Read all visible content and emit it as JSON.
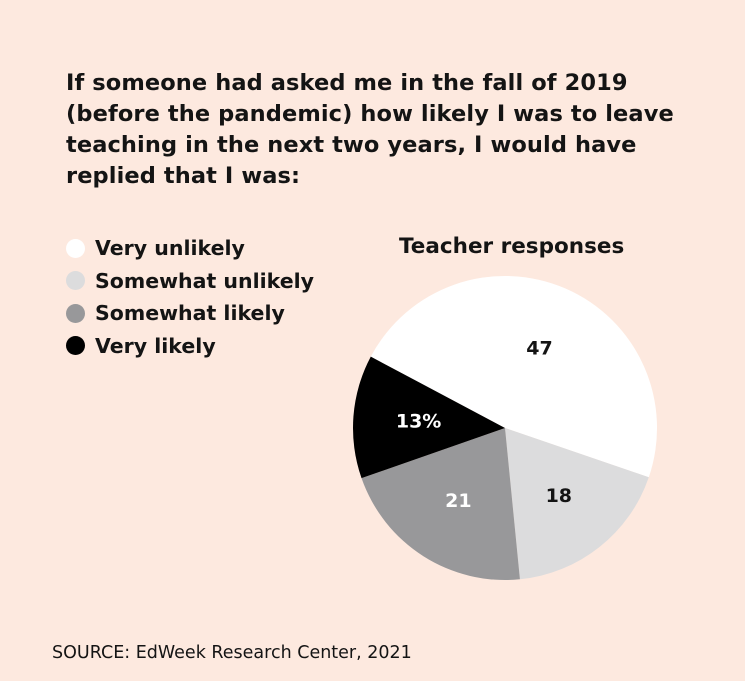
{
  "title": "If someone had asked me in the fall of 2019 (before the pandemic) how likely I was to leave teaching in the next two years, I would have replied that I was:",
  "source": "SOURCE: EdWeek Research Center, 2021",
  "colors": {
    "background": "#fde9df",
    "very_unlikely": "#ffffff",
    "somewhat_unlikely": "#dcdcdd",
    "somewhat_likely": "#98989a",
    "very_likely": "#000000"
  },
  "legend": {
    "items": [
      {
        "label": "Very unlikely",
        "color": "#ffffff"
      },
      {
        "label": "Somewhat unlikely",
        "color": "#dcdcdd"
      },
      {
        "label": "Somewhat likely",
        "color": "#98989a"
      },
      {
        "label": "Very likely",
        "color": "#000000"
      }
    ]
  },
  "chart_data": {
    "type": "pie",
    "title": "Teacher responses",
    "unit": "%",
    "legend_position": "left",
    "slices": [
      {
        "label": "Very unlikely",
        "value": 47,
        "display": "47",
        "color": "#ffffff",
        "text_color": "#141414"
      },
      {
        "label": "Somewhat unlikely",
        "value": 18,
        "display": "18",
        "color": "#dcdcdd",
        "text_color": "#141414"
      },
      {
        "label": "Somewhat likely",
        "value": 21,
        "display": "21",
        "color": "#98989a",
        "text_color": "#ffffff"
      },
      {
        "label": "Very likely",
        "value": 13,
        "display": "13%",
        "color": "#000000",
        "text_color": "#ffffff"
      }
    ]
  }
}
